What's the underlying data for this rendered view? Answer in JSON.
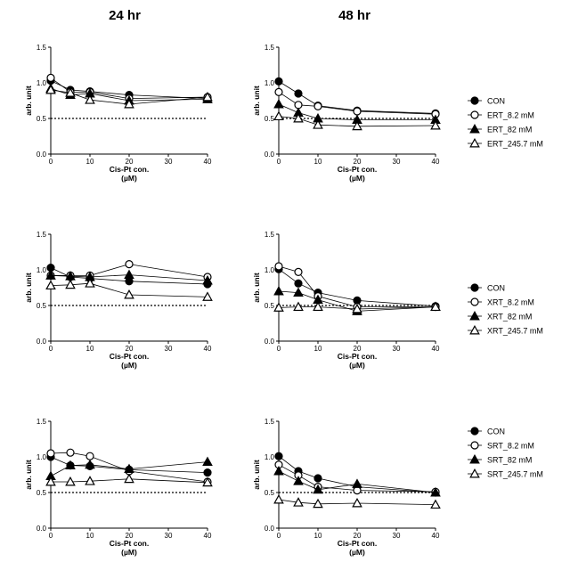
{
  "column_titles": [
    "24 hr",
    "48 hr"
  ],
  "chart_data": [
    {
      "type": "line",
      "row": 0,
      "col": 0,
      "xlabel": "Cis-Pt  con.",
      "xlabel_unit": "(µM)",
      "ylabel": "arb. unit",
      "xlim": [
        0,
        40
      ],
      "ylim": [
        0,
        1.5
      ],
      "xticks": [
        0,
        10,
        20,
        30,
        40
      ],
      "yticks": [
        0.0,
        0.5,
        1.0,
        1.5
      ],
      "ytick_labels": [
        "0.0",
        "0.5",
        "1.0",
        "1.5"
      ],
      "reference_line": 0.5,
      "x": [
        0,
        5,
        10,
        20,
        40
      ],
      "series": [
        {
          "name": "CON",
          "marker": "filled-circle",
          "values": [
            1.03,
            0.9,
            0.88,
            0.83,
            0.78
          ]
        },
        {
          "name": "ERT_8.2 mM",
          "marker": "open-circle",
          "values": [
            1.07,
            0.87,
            0.87,
            0.78,
            0.8
          ]
        },
        {
          "name": "ERT_82 mM",
          "marker": "filled-triangle",
          "values": [
            0.92,
            0.83,
            0.85,
            0.75,
            0.77
          ]
        },
        {
          "name": "ERT_245.7 mM",
          "marker": "open-triangle",
          "values": [
            0.9,
            0.86,
            0.76,
            0.7,
            0.8
          ]
        }
      ]
    },
    {
      "type": "line",
      "row": 0,
      "col": 1,
      "xlabel": "Cis-Pt  con.",
      "xlabel_unit": "(µM)",
      "ylabel": "arb. unit",
      "xlim": [
        0,
        40
      ],
      "ylim": [
        0,
        1.5
      ],
      "xticks": [
        0,
        10,
        20,
        30,
        40
      ],
      "yticks": [
        0.0,
        0.5,
        1.0,
        1.5
      ],
      "ytick_labels": [
        "0.0",
        "0.5",
        "1.0",
        "1.5"
      ],
      "reference_line": 0.5,
      "x": [
        0,
        5,
        10,
        20,
        40
      ],
      "series": [
        {
          "name": "CON",
          "marker": "filled-circle",
          "values": [
            1.02,
            0.85,
            0.68,
            0.61,
            0.57
          ]
        },
        {
          "name": "ERT_8.2 mM",
          "marker": "open-circle",
          "values": [
            0.87,
            0.69,
            0.67,
            0.6,
            0.56
          ]
        },
        {
          "name": "ERT_82 mM",
          "marker": "filled-triangle",
          "values": [
            0.7,
            0.58,
            0.5,
            0.48,
            0.48
          ]
        },
        {
          "name": "ERT_245.7 mM",
          "marker": "open-triangle",
          "values": [
            0.53,
            0.5,
            0.41,
            0.39,
            0.4
          ]
        }
      ],
      "legend": [
        "CON",
        "ERT_8.2 mM",
        "ERT_82 mM",
        "ERT_245.7 mM"
      ],
      "legend_position": "right"
    },
    {
      "type": "line",
      "row": 1,
      "col": 0,
      "xlabel": "Cis-Pt  con.",
      "xlabel_unit": "(µM)",
      "ylabel": "arb. unit",
      "xlim": [
        0,
        40
      ],
      "ylim": [
        0,
        1.5
      ],
      "xticks": [
        0,
        10,
        20,
        30,
        40
      ],
      "yticks": [
        0.0,
        0.5,
        1.0,
        1.5
      ],
      "ytick_labels": [
        "0.0",
        "0.5",
        "1.0",
        "1.5"
      ],
      "reference_line": 0.5,
      "x": [
        0,
        5,
        10,
        20,
        40
      ],
      "series": [
        {
          "name": "CON",
          "marker": "filled-circle",
          "values": [
            1.03,
            0.9,
            0.88,
            0.84,
            0.8
          ]
        },
        {
          "name": "XRT_8.2 mM",
          "marker": "open-circle",
          "values": [
            0.92,
            0.92,
            0.92,
            1.08,
            0.9
          ]
        },
        {
          "name": "XRT_82 mM",
          "marker": "filled-triangle",
          "values": [
            0.92,
            0.91,
            0.9,
            0.93,
            0.85
          ]
        },
        {
          "name": "XRT_245.7 mM",
          "marker": "open-triangle",
          "values": [
            0.78,
            0.79,
            0.81,
            0.65,
            0.62
          ]
        }
      ]
    },
    {
      "type": "line",
      "row": 1,
      "col": 1,
      "xlabel": "Cis-Pt  con.",
      "xlabel_unit": "(µM)",
      "ylabel": "arb. unit",
      "xlim": [
        0,
        40
      ],
      "ylim": [
        0,
        1.5
      ],
      "xticks": [
        0,
        10,
        20,
        30,
        40
      ],
      "yticks": [
        0.0,
        0.5,
        1.0,
        1.5
      ],
      "ytick_labels": [
        "0.0",
        "0.5",
        "1.0",
        "1.5"
      ],
      "reference_line": 0.5,
      "x": [
        0,
        5,
        10,
        20,
        40
      ],
      "series": [
        {
          "name": "CON",
          "marker": "filled-circle",
          "values": [
            1.01,
            0.81,
            0.68,
            0.57,
            0.49
          ]
        },
        {
          "name": "XRT_8.2 mM",
          "marker": "open-circle",
          "values": [
            1.05,
            0.97,
            0.63,
            0.48,
            0.48
          ]
        },
        {
          "name": "XRT_82 mM",
          "marker": "filled-triangle",
          "values": [
            0.7,
            0.68,
            0.58,
            0.42,
            0.48
          ]
        },
        {
          "name": "XRT_245.7 mM",
          "marker": "open-triangle",
          "values": [
            0.47,
            0.48,
            0.48,
            0.45,
            0.48
          ]
        }
      ],
      "legend": [
        "CON",
        "XRT_8.2 mM",
        "XRT_82 mM",
        "XRT_245.7 mM"
      ],
      "legend_position": "right"
    },
    {
      "type": "line",
      "row": 2,
      "col": 0,
      "xlabel": "Cis-Pt  con.",
      "xlabel_unit": "(µM)",
      "ylabel": "arb. unit",
      "xlim": [
        0,
        40
      ],
      "ylim": [
        0,
        1.5
      ],
      "xticks": [
        0,
        10,
        20,
        30,
        40
      ],
      "yticks": [
        0.0,
        0.5,
        1.0,
        1.5
      ],
      "ytick_labels": [
        "0.0",
        "0.5",
        "1.0",
        "1.5"
      ],
      "reference_line": 0.5,
      "x": [
        0,
        5,
        10,
        20,
        40
      ],
      "series": [
        {
          "name": "CON",
          "marker": "filled-circle",
          "values": [
            1.0,
            0.88,
            0.87,
            0.82,
            0.78
          ]
        },
        {
          "name": "SRT_8.2 mM",
          "marker": "open-circle",
          "values": [
            1.05,
            1.06,
            1.01,
            0.8,
            0.65
          ]
        },
        {
          "name": "SRT_82 mM",
          "marker": "filled-triangle",
          "values": [
            0.73,
            0.88,
            0.89,
            0.83,
            0.93
          ]
        },
        {
          "name": "SRT_245.7 mM",
          "marker": "open-triangle",
          "values": [
            0.65,
            0.65,
            0.66,
            0.69,
            0.64
          ]
        }
      ]
    },
    {
      "type": "line",
      "row": 2,
      "col": 1,
      "xlabel": "Cis-Pt  con.",
      "xlabel_unit": "(µM)",
      "ylabel": "arb. unit",
      "xlim": [
        0,
        40
      ],
      "ylim": [
        0,
        1.5
      ],
      "xticks": [
        0,
        10,
        20,
        30,
        40
      ],
      "yticks": [
        0.0,
        0.5,
        1.0,
        1.5
      ],
      "ytick_labels": [
        "0.0",
        "0.5",
        "1.0",
        "1.5"
      ],
      "reference_line": 0.5,
      "x": [
        0,
        5,
        10,
        20,
        40
      ],
      "series": [
        {
          "name": "CON",
          "marker": "filled-circle",
          "values": [
            1.01,
            0.8,
            0.7,
            0.58,
            0.5
          ]
        },
        {
          "name": "SRT_8.2 mM",
          "marker": "open-circle",
          "values": [
            0.89,
            0.74,
            0.58,
            0.53,
            0.51
          ]
        },
        {
          "name": "SRT_82 mM",
          "marker": "filled-triangle",
          "values": [
            0.8,
            0.66,
            0.54,
            0.62,
            0.5
          ]
        },
        {
          "name": "SRT_245.7 mM",
          "marker": "open-triangle",
          "values": [
            0.4,
            0.36,
            0.34,
            0.35,
            0.33
          ]
        }
      ],
      "legend": [
        "CON",
        "SRT_8.2 mM",
        "SRT_82 mM",
        "SRT_245.7 mM"
      ],
      "legend_position": "right"
    }
  ]
}
